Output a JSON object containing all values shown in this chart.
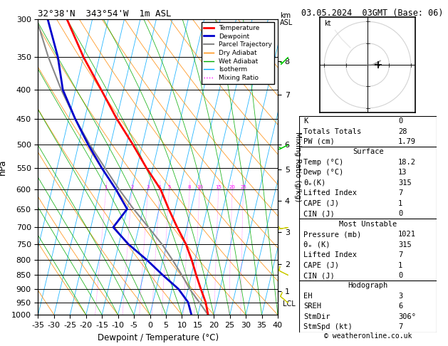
{
  "title_left": "32°38'N  343°54'W  1m ASL",
  "title_right": "03.05.2024  03GMT (Base: 06)",
  "xlabel": "Dewpoint / Temperature (°C)",
  "ylabel_left": "hPa",
  "ylabel_right": "Mixing Ratio (g/kg)",
  "pressure_levels": [
    300,
    350,
    400,
    450,
    500,
    550,
    600,
    650,
    700,
    750,
    800,
    850,
    900,
    950,
    1000
  ],
  "temp_range": [
    -35,
    40
  ],
  "pressure_range": [
    1000,
    300
  ],
  "temperature_profile": {
    "pressures": [
      1000,
      950,
      900,
      850,
      800,
      750,
      700,
      650,
      600,
      550,
      500,
      450,
      400,
      350,
      300
    ],
    "temps": [
      18.2,
      16.5,
      14.0,
      11.5,
      9.0,
      6.0,
      2.0,
      -2.0,
      -6.0,
      -12.0,
      -18.0,
      -25.0,
      -32.0,
      -40.0,
      -48.0
    ]
  },
  "dewpoint_profile": {
    "pressures": [
      1000,
      950,
      900,
      850,
      800,
      750,
      700,
      650,
      600,
      550,
      500,
      450,
      400,
      350,
      300
    ],
    "temps": [
      13.0,
      11.0,
      7.0,
      1.0,
      -5.0,
      -12.0,
      -18.0,
      -15.0,
      -20.0,
      -26.0,
      -32.0,
      -38.0,
      -44.0,
      -48.0,
      -54.0
    ]
  },
  "parcel_profile": {
    "pressures": [
      1000,
      950,
      900,
      850,
      800,
      750,
      700,
      650,
      600,
      550,
      500,
      450,
      400,
      350,
      300
    ],
    "temps": [
      18.2,
      14.5,
      10.5,
      7.0,
      3.0,
      -1.5,
      -7.0,
      -13.0,
      -19.0,
      -25.0,
      -31.5,
      -38.0,
      -44.5,
      -51.0,
      -57.5
    ]
  },
  "skew_factor": 22,
  "colors": {
    "temperature": "#ff0000",
    "dewpoint": "#0000cc",
    "parcel": "#888888",
    "dry_adiabat": "#ff8800",
    "wet_adiabat": "#00aa00",
    "isotherm": "#00aaff",
    "mixing_ratio": "#ff00ff",
    "background": "#ffffff",
    "grid": "#000000"
  },
  "mixing_ratio_values": [
    1,
    2,
    3,
    4,
    5,
    8,
    10,
    15,
    20,
    25
  ],
  "km_labels": [
    "8",
    "7",
    "6",
    "5",
    "4",
    "3",
    "2",
    "1"
  ],
  "km_pressures": [
    356,
    408,
    500,
    553,
    628,
    715,
    813,
    908
  ],
  "lcl_pressure": 958,
  "wind_pressures": [
    350,
    500,
    700,
    850,
    950
  ],
  "wind_u": [
    3,
    4,
    6,
    8,
    7
  ],
  "wind_v": [
    3,
    2,
    1,
    -4,
    -6
  ],
  "wind_colors": [
    "#00cc00",
    "#00cc00",
    "#cccc00",
    "#cccc00",
    "#cccc00"
  ],
  "copyright": "© weatheronline.co.uk"
}
